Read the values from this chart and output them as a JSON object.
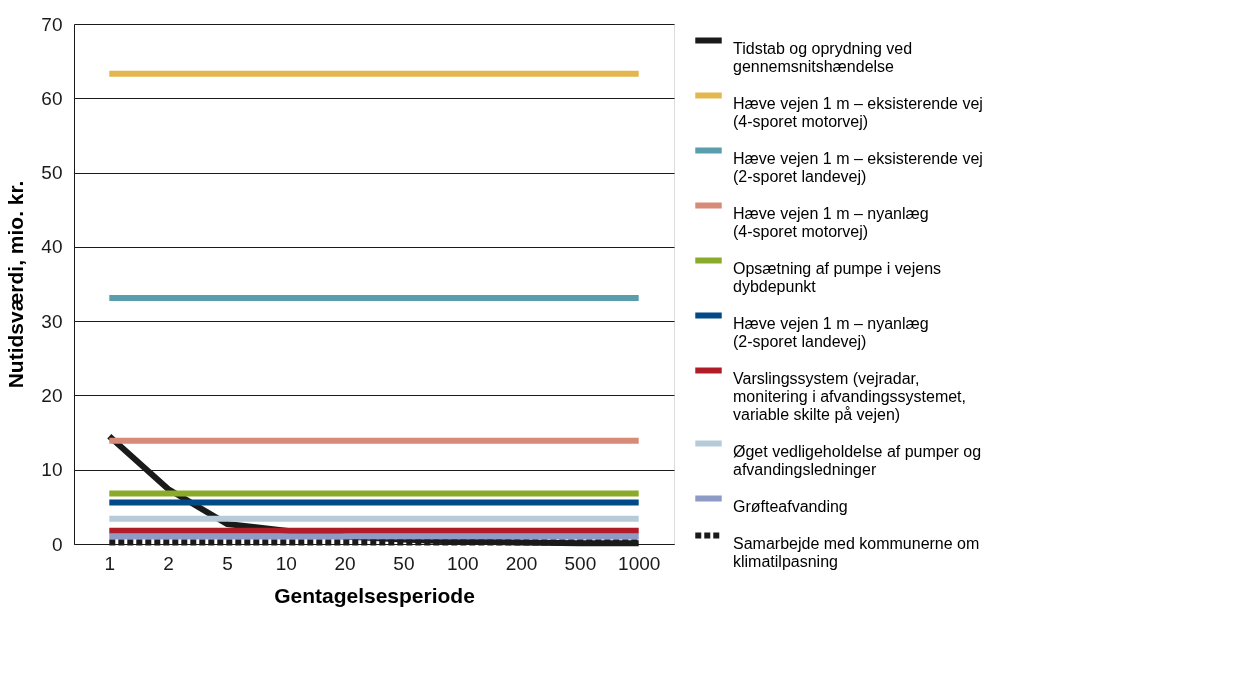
{
  "chart_data": {
    "type": "line",
    "xlabel": "Gentagelsesperiode",
    "ylabel": "Nutidsværdi, mio. kr.",
    "categories": [
      "1",
      "2",
      "5",
      "10",
      "20",
      "50",
      "100",
      "200",
      "500",
      "1000"
    ],
    "ylim": [
      0,
      70
    ],
    "yticks": [
      0,
      10,
      20,
      30,
      40,
      50,
      60,
      70
    ],
    "grid": "y",
    "legend": "right",
    "marker": "none",
    "line_style": "solid",
    "series": [
      {
        "name": "Tidstab og oprydning ved\ngennemsnitshændelse",
        "color": "#1a1a1a",
        "values": [
          14.5,
          7.4,
          2.7,
          1.8,
          1.0,
          0.6,
          0.3,
          0.2,
          0.1,
          0.1
        ]
      },
      {
        "name": "Hæve vejen 1 m – eksisterende vej\n(4-sporet motorvej)",
        "color": "#e3b64e",
        "values": [
          63.3,
          63.3,
          63.3,
          63.3,
          63.3,
          63.3,
          63.3,
          63.3,
          63.3,
          63.3
        ]
      },
      {
        "name": "Hæve vejen 1 m – eksisterende vej\n(2-sporet landevej)",
        "color": "#5a9dad",
        "values": [
          33.1,
          33.1,
          33.1,
          33.1,
          33.1,
          33.1,
          33.1,
          33.1,
          33.1,
          33.1
        ]
      },
      {
        "name": "Hæve vejen 1 m – nyanlæg\n(4-sporet motorvej)",
        "color": "#d68a78",
        "values": [
          13.9,
          13.9,
          13.9,
          13.9,
          13.9,
          13.9,
          13.9,
          13.9,
          13.9,
          13.9
        ]
      },
      {
        "name": "Opsætning af pumpe i vejens\ndybdepunkt",
        "color": "#8aab2a",
        "values": [
          6.8,
          6.8,
          6.8,
          6.8,
          6.8,
          6.8,
          6.8,
          6.8,
          6.8,
          6.8
        ]
      },
      {
        "name": "Hæve vejen 1 m – nyanlæg\n(2-sporet landevej)",
        "color": "#004a87",
        "values": [
          5.6,
          5.6,
          5.6,
          5.6,
          5.6,
          5.6,
          5.6,
          5.6,
          5.6,
          5.6
        ]
      },
      {
        "name": "Varslingssystem (vejradar,\nmonitering i afvandingssystemet,\nvariable skilte på vejen)",
        "color": "#b01c27",
        "values": [
          1.8,
          1.8,
          1.8,
          1.8,
          1.8,
          1.8,
          1.8,
          1.8,
          1.8,
          1.8
        ]
      },
      {
        "name": "Øget vedligeholdelse af pumper og\nafvandingsledninger",
        "color": "#b5ccd8",
        "values": [
          3.4,
          3.4,
          3.4,
          3.4,
          3.4,
          3.4,
          3.4,
          3.4,
          3.4,
          3.4
        ]
      },
      {
        "name": "Grøfteafvanding",
        "color": "#8d9bc6",
        "values": [
          1.0,
          1.0,
          1.0,
          1.0,
          1.0,
          1.0,
          1.0,
          1.0,
          1.0,
          1.0
        ]
      },
      {
        "name": "Samarbejde med kommunerne om\nklimatilpasning",
        "color": "#1a1a1a",
        "line_style": "dashed",
        "values": [
          0.2,
          0.2,
          0.2,
          0.2,
          0.2,
          0.2,
          0.2,
          0.2,
          0.2,
          0.2
        ]
      }
    ]
  }
}
